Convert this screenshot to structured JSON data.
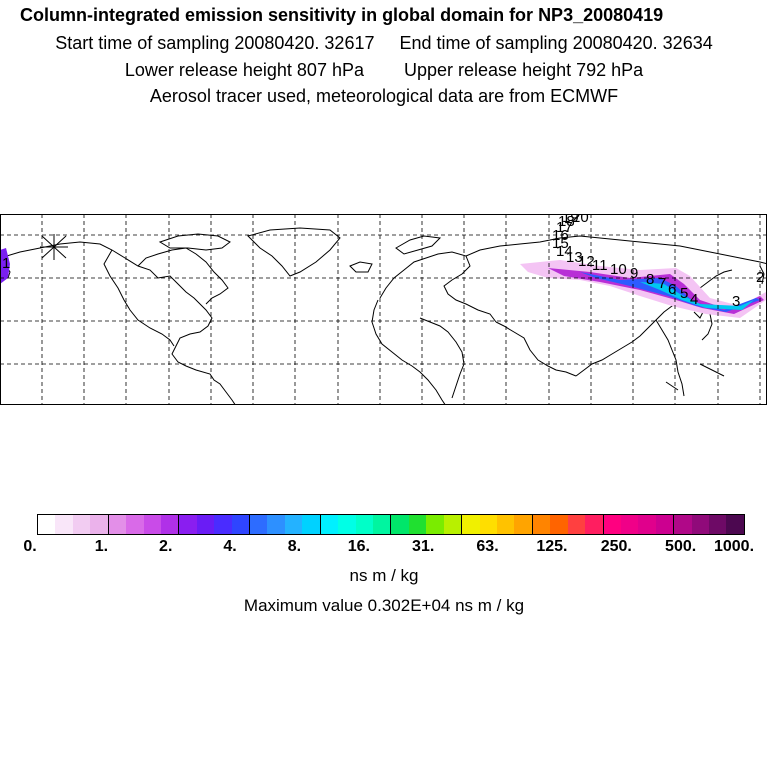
{
  "title": {
    "main": "Column-integrated emission sensitivity in global domain for NP3_20080419",
    "start_label": "Start time of sampling 20080420. 32617",
    "end_label": "End time of sampling 20080420. 32634",
    "lower_label": "Lower release height  807 hPa",
    "upper_label": "Upper release height  792 hPa",
    "tracer_line": "Aerosol tracer used, meteorological data are from ECMWF"
  },
  "map": {
    "track_labels": [
      "1",
      "2",
      "3",
      "4",
      "5",
      "6",
      "7",
      "8",
      "9",
      "10",
      "11",
      "12",
      "13",
      "14",
      "15",
      "16",
      "17",
      "18",
      "19",
      "20"
    ],
    "plume_colors": [
      "#f4c4f4",
      "#e27ee2",
      "#b82fd6",
      "#7a1ff0",
      "#2d5bff",
      "#00c8f0",
      "#00e8c0"
    ]
  },
  "colorbar": {
    "ticks": [
      "0.",
      "1.",
      "2.",
      "4.",
      "8.",
      "16.",
      "31.",
      "63.",
      "125.",
      "250.",
      "500.",
      "1000."
    ],
    "colors": [
      "#ffffff",
      "#f9e6f9",
      "#f2ccf2",
      "#ebb2eb",
      "#e38fe8",
      "#d96ae8",
      "#c94be8",
      "#b030e8",
      "#8a1ef0",
      "#6a1cf5",
      "#4a2cff",
      "#2f45ff",
      "#2d6cff",
      "#2d90ff",
      "#24b2ff",
      "#00d2ff",
      "#00f0ff",
      "#00ffe6",
      "#00ffc8",
      "#00f5a0",
      "#00e66a",
      "#20e030",
      "#7aec00",
      "#b8f000",
      "#f0f000",
      "#ffde00",
      "#ffc200",
      "#ffa400",
      "#ff8400",
      "#ff6400",
      "#ff4040",
      "#ff1e60",
      "#ff0080",
      "#f00088",
      "#e0008c",
      "#cc0090",
      "#b00888",
      "#900a7a",
      "#6e0a66",
      "#4c0850"
    ],
    "unit": "ns m / kg",
    "max_value": "Maximum value  0.302E+04 ns m / kg"
  }
}
